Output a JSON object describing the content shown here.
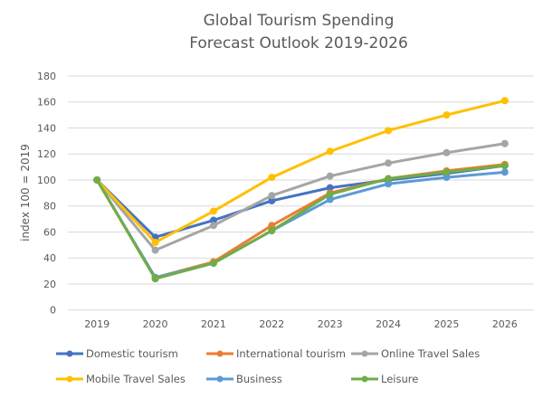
{
  "chart_data": {
    "type": "line",
    "title": [
      "Global Tourism Spending",
      "Forecast Outlook 2019-2026"
    ],
    "xlabel": "",
    "ylabel": "index  100 = 2019",
    "ylim": [
      0,
      180
    ],
    "yticks": [
      0,
      20,
      40,
      60,
      80,
      100,
      120,
      140,
      160,
      180
    ],
    "grid": true,
    "legend_position": "bottom",
    "categories": [
      "2019",
      "2020",
      "2021",
      "2022",
      "2023",
      "2024",
      "2025",
      "2026"
    ],
    "series": [
      {
        "name": "Domestic tourism",
        "color": "#4472C4",
        "values": [
          100,
          56,
          69,
          84,
          94,
          100,
          105,
          111
        ]
      },
      {
        "name": "International tourism",
        "color": "#ED7D31",
        "values": [
          100,
          25,
          37,
          65,
          90,
          101,
          107,
          112
        ]
      },
      {
        "name": "Online Travel Sales",
        "color": "#A5A5A5",
        "values": [
          100,
          46,
          65,
          88,
          103,
          113,
          121,
          128
        ]
      },
      {
        "name": "Mobile Travel Sales",
        "color": "#FFC000",
        "values": [
          100,
          52,
          76,
          102,
          122,
          138,
          150,
          161
        ]
      },
      {
        "name": "Business",
        "color": "#5B9BD5",
        "values": [
          100,
          25,
          36,
          61,
          85,
          97,
          102,
          106
        ]
      },
      {
        "name": "Leisure",
        "color": "#70AD47",
        "values": [
          100,
          24,
          36,
          61,
          89,
          101,
          106,
          111
        ]
      }
    ]
  }
}
